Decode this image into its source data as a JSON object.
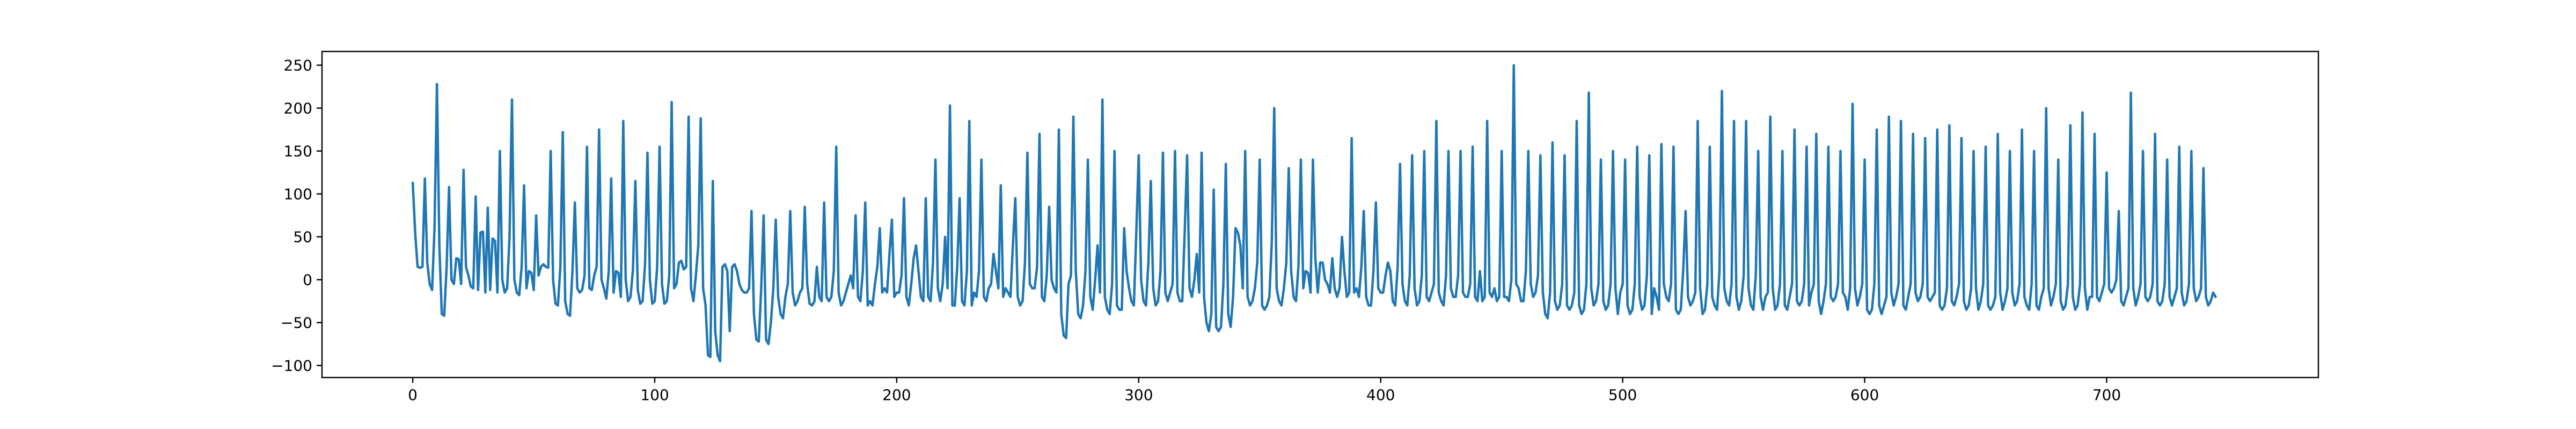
{
  "chart_data": {
    "type": "line",
    "title": "",
    "xlabel": "",
    "ylabel": "",
    "xlim": [
      -37.5,
      787.5
    ],
    "ylim": [
      -114,
      266
    ],
    "xticks": [
      0,
      100,
      200,
      300,
      400,
      500,
      600,
      700
    ],
    "yticks": [
      -100,
      -50,
      0,
      50,
      100,
      150,
      200,
      250
    ],
    "grid": false,
    "legend": "none",
    "color": "#1f77b4",
    "series": [
      {
        "x_start": 0,
        "x_step": 1,
        "values": [
          113,
          55,
          15,
          14,
          15,
          118,
          20,
          -5,
          -12,
          60,
          228,
          40,
          -40,
          -42,
          15,
          108,
          0,
          -5,
          25,
          24,
          -5,
          128,
          15,
          5,
          -8,
          -10,
          97,
          -12,
          55,
          56,
          -15,
          84,
          -12,
          48,
          45,
          -15,
          150,
          0,
          -15,
          -10,
          50,
          210,
          0,
          -15,
          -18,
          15,
          110,
          -10,
          10,
          8,
          -12,
          75,
          5,
          15,
          18,
          15,
          14,
          150,
          0,
          -28,
          -30,
          15,
          172,
          -25,
          -40,
          -42,
          10,
          90,
          -10,
          -15,
          -12,
          5,
          155,
          -10,
          -12,
          5,
          15,
          175,
          0,
          -10,
          -22,
          10,
          118,
          -15,
          10,
          8,
          -20,
          185,
          0,
          -25,
          -20,
          12,
          115,
          -12,
          -28,
          -25,
          18,
          148,
          0,
          -28,
          -25,
          15,
          155,
          -5,
          -28,
          -25,
          5,
          207,
          -10,
          -5,
          20,
          22,
          12,
          15,
          190,
          -10,
          -25,
          5,
          40,
          188,
          -10,
          -30,
          -88,
          -90,
          115,
          -60,
          -88,
          -95,
          15,
          18,
          10,
          -60,
          15,
          18,
          10,
          -5,
          -12,
          -15,
          -15,
          -10,
          80,
          -40,
          -70,
          -72,
          -10,
          75,
          -70,
          -75,
          -50,
          -10,
          70,
          -20,
          -40,
          -45,
          -20,
          -5,
          80,
          -15,
          -30,
          -25,
          -15,
          -10,
          85,
          -5,
          -28,
          -30,
          -25,
          15,
          -20,
          -25,
          90,
          -20,
          -25,
          -20,
          10,
          155,
          -15,
          -30,
          -25,
          -15,
          -5,
          5,
          -10,
          75,
          -20,
          -25,
          10,
          90,
          -30,
          -25,
          -30,
          -5,
          15,
          60,
          -15,
          -10,
          -15,
          30,
          70,
          -20,
          -15,
          -15,
          5,
          95,
          -20,
          -30,
          -5,
          25,
          40,
          10,
          -20,
          -25,
          95,
          -20,
          -25,
          20,
          140,
          -10,
          -25,
          -5,
          50,
          -10,
          203,
          -30,
          -30,
          15,
          95,
          -25,
          -30,
          10,
          185,
          -30,
          -15,
          -20,
          10,
          140,
          -20,
          -25,
          -10,
          -5,
          30,
          10,
          -10,
          110,
          -20,
          -10,
          -15,
          -20,
          40,
          95,
          -20,
          -30,
          -25,
          20,
          148,
          -5,
          -10,
          -10,
          15,
          170,
          -20,
          -25,
          5,
          85,
          0,
          -10,
          -15,
          175,
          -40,
          -65,
          -68,
          -5,
          5,
          190,
          10,
          -40,
          -45,
          -30,
          10,
          140,
          -20,
          -35,
          0,
          40,
          -15,
          210,
          -20,
          -35,
          -40,
          -5,
          150,
          -30,
          -35,
          -35,
          60,
          10,
          -10,
          -25,
          -30,
          55,
          145,
          0,
          -25,
          -30,
          20,
          115,
          -10,
          -30,
          -25,
          10,
          148,
          -15,
          -25,
          -15,
          -5,
          150,
          -15,
          -25,
          -25,
          55,
          145,
          -10,
          -20,
          0,
          30,
          -15,
          148,
          -20,
          -50,
          -60,
          -40,
          105,
          -55,
          -60,
          -55,
          -5,
          135,
          -40,
          -55,
          -20,
          60,
          55,
          40,
          -10,
          150,
          -20,
          -30,
          -25,
          -10,
          20,
          140,
          -30,
          -35,
          -30,
          -20,
          45,
          200,
          -10,
          -25,
          -30,
          -10,
          20,
          130,
          10,
          -20,
          -25,
          15,
          140,
          -10,
          10,
          8,
          -15,
          140,
          25,
          -15,
          20,
          20,
          0,
          -5,
          -15,
          25,
          -10,
          -20,
          -10,
          50,
          10,
          -20,
          -15,
          165,
          -15,
          -10,
          -20,
          15,
          80,
          -20,
          -30,
          -30,
          10,
          90,
          -10,
          -15,
          -15,
          5,
          20,
          10,
          -25,
          -30,
          15,
          135,
          -5,
          -25,
          -30,
          5,
          145,
          -10,
          -30,
          -25,
          5,
          150,
          -20,
          -25,
          -15,
          -5,
          185,
          -15,
          -25,
          -30,
          5,
          150,
          -10,
          -20,
          -20,
          5,
          150,
          -15,
          -20,
          -20,
          -5,
          155,
          -20,
          -25,
          10,
          -25,
          -20,
          185,
          -15,
          -20,
          -10,
          -25,
          -20,
          150,
          -20,
          -20,
          -25,
          0,
          250,
          -5,
          -10,
          -25,
          -25,
          10,
          150,
          -5,
          -20,
          -15,
          5,
          145,
          -15,
          -40,
          -45,
          -15,
          160,
          -25,
          -35,
          -30,
          -5,
          145,
          -30,
          -35,
          -30,
          -15,
          185,
          -30,
          -40,
          -35,
          -5,
          218,
          -10,
          -30,
          -25,
          -5,
          140,
          -25,
          -35,
          -30,
          -5,
          150,
          -10,
          -40,
          -15,
          -5,
          140,
          -30,
          -40,
          -35,
          -5,
          155,
          -20,
          -35,
          -30,
          5,
          145,
          -40,
          -10,
          -20,
          -35,
          158,
          -5,
          -20,
          -25,
          -5,
          155,
          -35,
          -40,
          -35,
          10,
          80,
          -20,
          -30,
          -25,
          -15,
          185,
          -10,
          -40,
          -35,
          -5,
          155,
          -20,
          -30,
          -35,
          10,
          220,
          -10,
          -25,
          -30,
          -5,
          185,
          -20,
          -35,
          -25,
          5,
          185,
          -10,
          -30,
          -35,
          5,
          150,
          -20,
          -35,
          -20,
          -15,
          190,
          -10,
          -35,
          -30,
          -5,
          150,
          -30,
          -35,
          -20,
          -5,
          175,
          -25,
          -30,
          -25,
          -5,
          155,
          -30,
          -15,
          -5,
          170,
          -25,
          -40,
          -25,
          -5,
          155,
          -20,
          -25,
          -20,
          -5,
          150,
          -15,
          -20,
          -35,
          -10,
          205,
          -10,
          -30,
          -20,
          -5,
          140,
          -35,
          -40,
          -35,
          -5,
          175,
          -30,
          -40,
          -30,
          -20,
          190,
          -15,
          -30,
          -20,
          -5,
          185,
          -30,
          -35,
          -20,
          -5,
          170,
          -15,
          -25,
          -20,
          -5,
          165,
          -20,
          -25,
          -20,
          -15,
          175,
          -30,
          -35,
          -30,
          -10,
          180,
          -25,
          -30,
          -20,
          -5,
          165,
          -25,
          -35,
          -30,
          -10,
          150,
          -10,
          -35,
          -25,
          -5,
          155,
          -30,
          -35,
          -30,
          -20,
          170,
          -15,
          -35,
          -25,
          -10,
          150,
          -15,
          -30,
          -25,
          -5,
          175,
          -20,
          -30,
          -35,
          -5,
          150,
          -30,
          -35,
          -20,
          -10,
          200,
          -10,
          -30,
          -20,
          -5,
          140,
          -25,
          -35,
          -30,
          -5,
          180,
          -20,
          -35,
          -30,
          -5,
          195,
          -10,
          -35,
          -20,
          -20,
          170,
          -20,
          -25,
          -15,
          -5,
          125,
          -10,
          -15,
          -10,
          0,
          80,
          -25,
          -30,
          -20,
          -10,
          218,
          -10,
          -30,
          -20,
          -5,
          150,
          -20,
          -25,
          -20,
          -5,
          170,
          -25,
          -30,
          -25,
          -5,
          140,
          -20,
          -30,
          -20,
          -10,
          155,
          -15,
          -30,
          -25,
          -5,
          150,
          -10,
          -25,
          -20,
          -10,
          130,
          -20,
          -30,
          -25,
          -15,
          -20
        ]
      }
    ]
  }
}
